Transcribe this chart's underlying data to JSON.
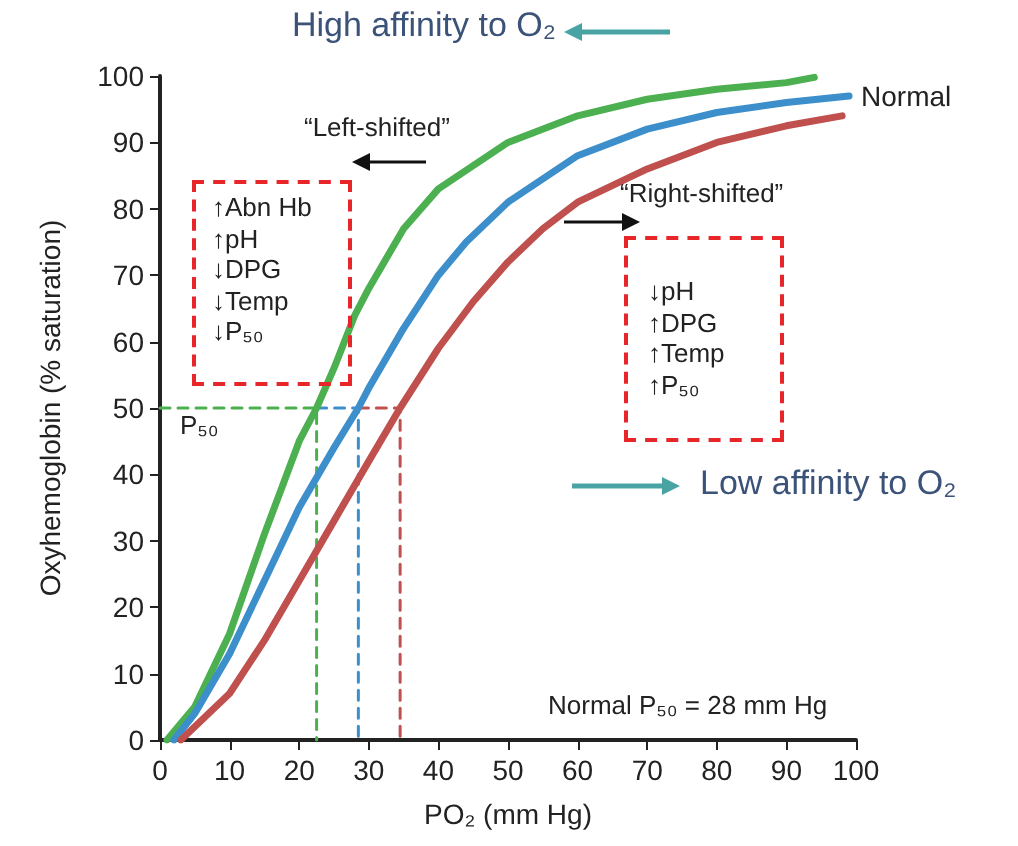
{
  "chart_data": {
    "type": "line",
    "xlabel": "PO₂ (mm Hg)",
    "ylabel": "Oxyhemoglobin (% saturation)",
    "xlim": [
      0,
      100
    ],
    "ylim": [
      0,
      100
    ],
    "xticks": [
      0,
      10,
      20,
      30,
      40,
      50,
      60,
      70,
      80,
      90,
      100
    ],
    "yticks": [
      0,
      10,
      20,
      30,
      40,
      50,
      60,
      70,
      80,
      90,
      100
    ],
    "grid": false,
    "legend": false,
    "marker": "none",
    "series": [
      {
        "color": "#4cb050",
        "line_style": "solid",
        "x": [
          1,
          5,
          10,
          15,
          20,
          22.5,
          25,
          28,
          30,
          35,
          40,
          50,
          60,
          70,
          80,
          90,
          94
        ],
        "values": [
          0,
          5,
          16,
          31,
          45,
          50,
          56,
          64,
          68,
          77,
          83,
          90,
          94,
          96.5,
          98,
          99,
          99.8
        ]
      },
      {
        "name": "Normal",
        "color": "#3d8fcb",
        "line_style": "solid",
        "x": [
          2,
          5,
          10,
          15,
          20,
          25,
          28.5,
          30,
          35,
          40,
          44,
          50,
          60,
          70,
          80,
          90,
          99
        ],
        "values": [
          0,
          4,
          13,
          24,
          35,
          44,
          50,
          53,
          62,
          70,
          75,
          81,
          88,
          92,
          94.5,
          96,
          97
        ]
      },
      {
        "color": "#c0504d",
        "line_style": "solid",
        "x": [
          3,
          10,
          15,
          20,
          25,
          30,
          34.5,
          40,
          45,
          50,
          55,
          60,
          70,
          80,
          90,
          98
        ],
        "values": [
          0,
          7,
          15,
          24,
          33,
          42,
          50,
          59,
          66,
          72,
          77,
          81,
          86,
          90,
          92.5,
          94
        ]
      },
      {
        "color": "#4cb050",
        "line_style": "dashed",
        "x": [
          0,
          22.5,
          22.5
        ],
        "values": [
          50,
          50,
          0
        ]
      },
      {
        "color": "#3d8fcb",
        "line_style": "dashed",
        "x": [
          22.5,
          28.5,
          28.5
        ],
        "values": [
          50,
          50,
          0
        ]
      },
      {
        "color": "#c0504d",
        "line_style": "dashed",
        "x": [
          28.5,
          34.5,
          34.5
        ],
        "values": [
          50,
          50,
          0
        ]
      }
    ],
    "annotations": [
      "High affinity to O₂",
      "“Left-shifted”",
      "“Right-shifted”",
      "↑Abn Hb\n↑pH\n↓DPG\n↓Temp\n↓P₅₀",
      "↓pH\n↑DPG\n↑Temp\n↑P₅₀",
      "P₅₀",
      "Low affinity to O₂",
      "Normal P₅₀ = 28 mm Hg"
    ]
  }
}
